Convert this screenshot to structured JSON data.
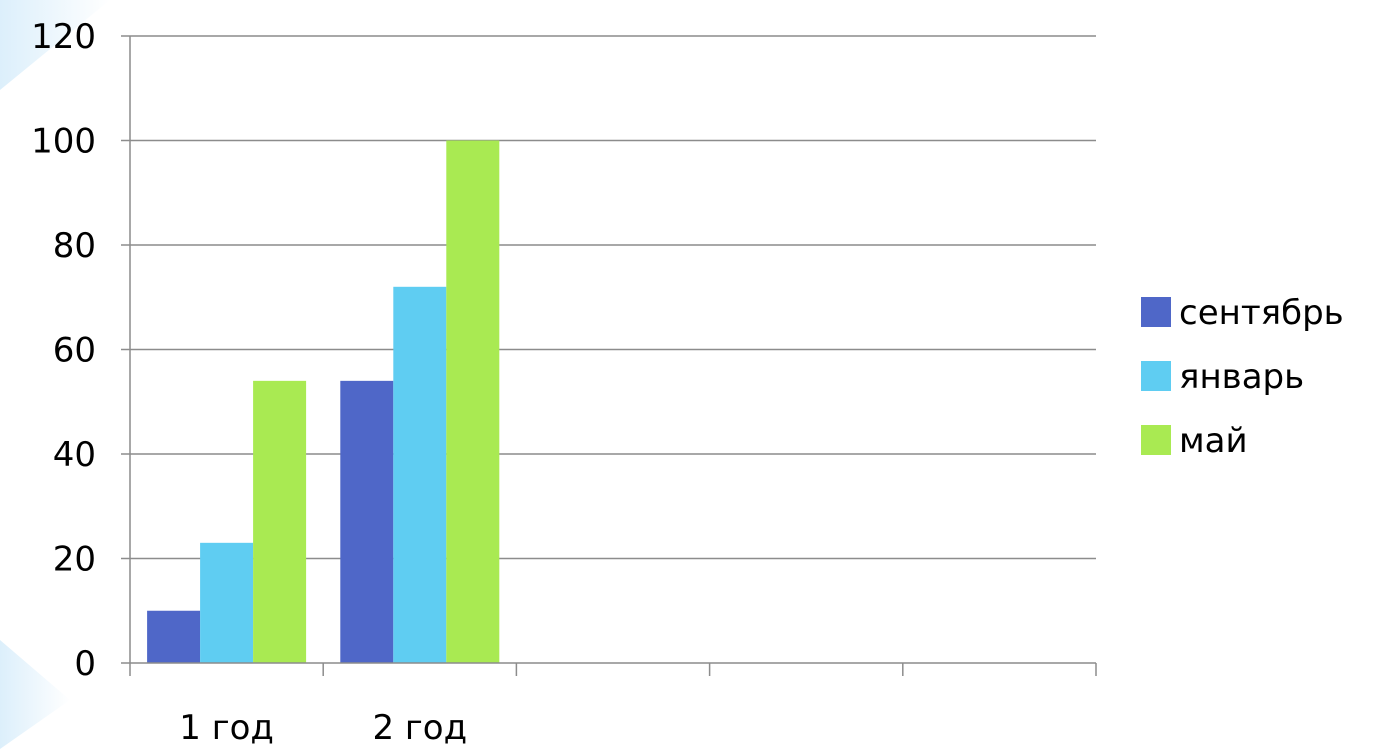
{
  "chart_data": {
    "type": "bar",
    "categories": [
      "1 год",
      "2 год",
      "",
      "",
      ""
    ],
    "series": [
      {
        "name": "сентябрь",
        "values": [
          10,
          54,
          null,
          null,
          null
        ],
        "color": "#4F67C8"
      },
      {
        "name": "январь",
        "values": [
          23,
          72,
          null,
          null,
          null
        ],
        "color": "#5FCDF2"
      },
      {
        "name": "май",
        "values": [
          54,
          100,
          null,
          null,
          null
        ],
        "color": "#A9EA52"
      }
    ],
    "title": "",
    "xlabel": "",
    "ylabel": "",
    "ylim": [
      0,
      120
    ],
    "yticks": [
      "0",
      "20",
      "40",
      "60",
      "80",
      "100",
      "120"
    ],
    "grid": true,
    "legend_position": "right",
    "colors": {
      "gridline": "#8C8C8C",
      "axis": "#8C8C8C",
      "background_accent": "#DCEFFB"
    }
  }
}
